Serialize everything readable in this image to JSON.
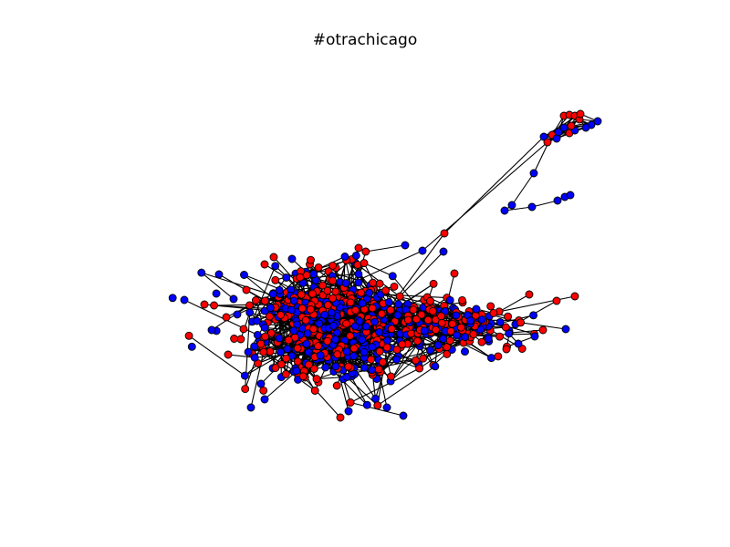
{
  "figure": {
    "title": "#otrachicago"
  },
  "colors": {
    "background": "#ffffff",
    "edge": "#000000",
    "node_outline": "#000000",
    "node_groups": [
      "#ff0000",
      "#0000ff"
    ]
  }
}
